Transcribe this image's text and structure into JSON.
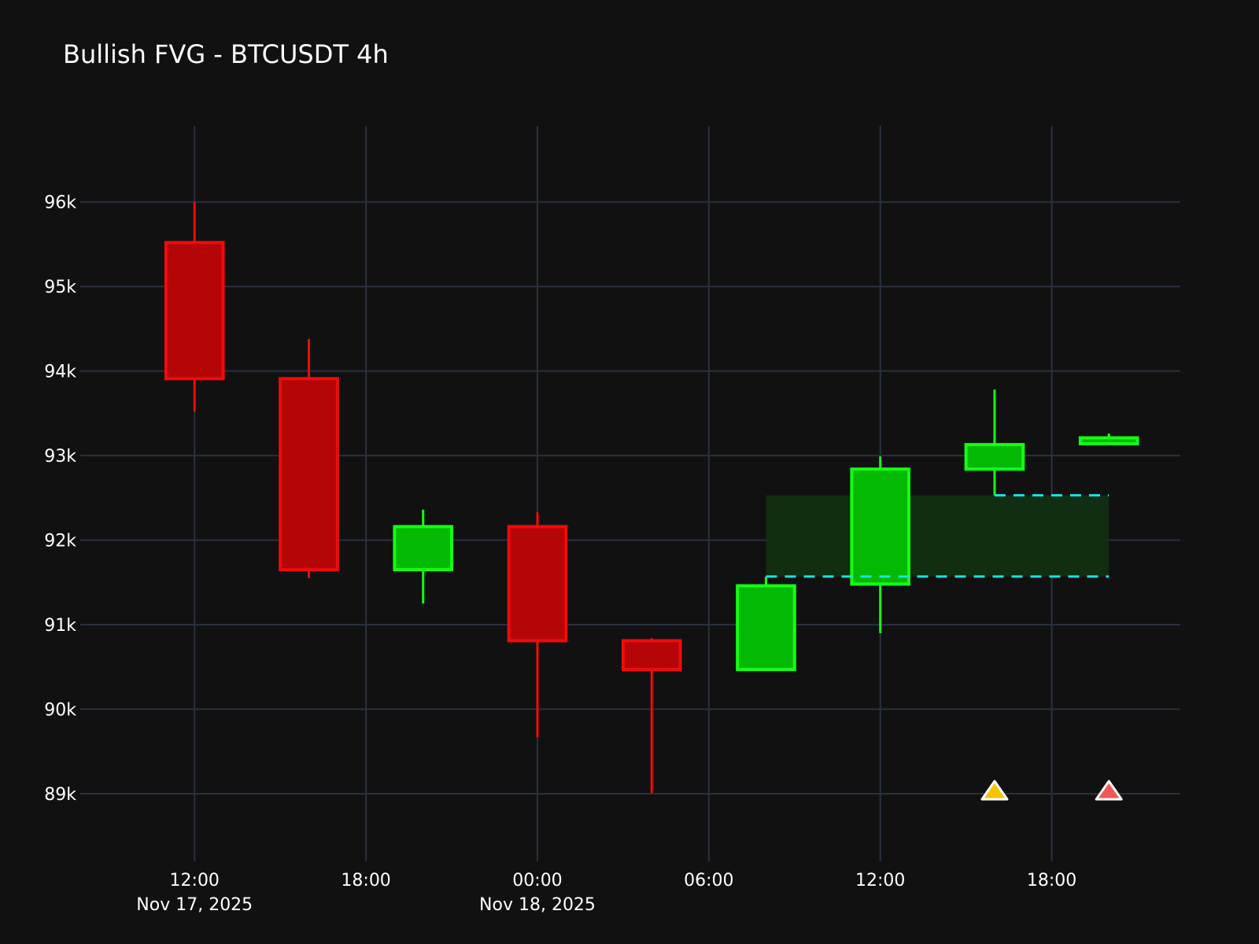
{
  "chart_data": {
    "type": "candlestick",
    "title": "Bullish FVG - BTCUSDT 4h",
    "xlabel": "",
    "ylabel": "",
    "ylim": [
      88200,
      96900
    ],
    "xlim": [
      "2025-11-17T08:00",
      "2025-11-18T22:30"
    ],
    "grid": true,
    "y_ticks": [
      {
        "value": 89000,
        "label": "89k"
      },
      {
        "value": 90000,
        "label": "90k"
      },
      {
        "value": 91000,
        "label": "91k"
      },
      {
        "value": 92000,
        "label": "92k"
      },
      {
        "value": 93000,
        "label": "93k"
      },
      {
        "value": 94000,
        "label": "94k"
      },
      {
        "value": 95000,
        "label": "95k"
      },
      {
        "value": 96000,
        "label": "96k"
      }
    ],
    "x_ticks": [
      {
        "time": "2025-11-17T12:00",
        "label": "12:00",
        "sublabel": "Nov 17, 2025"
      },
      {
        "time": "2025-11-17T18:00",
        "label": "18:00",
        "sublabel": ""
      },
      {
        "time": "2025-11-18T00:00",
        "label": "00:00",
        "sublabel": "Nov 18, 2025"
      },
      {
        "time": "2025-11-18T06:00",
        "label": "06:00",
        "sublabel": ""
      },
      {
        "time": "2025-11-18T12:00",
        "label": "12:00",
        "sublabel": ""
      },
      {
        "time": "2025-11-18T18:00",
        "label": "18:00",
        "sublabel": ""
      }
    ],
    "candles": [
      {
        "time": "2025-11-17T12:00",
        "open": 95520,
        "high": 96000,
        "low": 93520,
        "close": 93910
      },
      {
        "time": "2025-11-17T16:00",
        "open": 93910,
        "high": 94380,
        "low": 91550,
        "close": 91650
      },
      {
        "time": "2025-11-17T20:00",
        "open": 91650,
        "high": 92360,
        "low": 91250,
        "close": 92160
      },
      {
        "time": "2025-11-18T00:00",
        "open": 92160,
        "high": 92330,
        "low": 89670,
        "close": 90810
      },
      {
        "time": "2025-11-18T04:00",
        "open": 90810,
        "high": 90840,
        "low": 89010,
        "close": 90470
      },
      {
        "time": "2025-11-18T08:00",
        "open": 90470,
        "high": 91570,
        "low": 90470,
        "close": 91460
      },
      {
        "time": "2025-11-18T12:00",
        "open": 91480,
        "high": 92990,
        "low": 90900,
        "close": 92840
      },
      {
        "time": "2025-11-18T16:00",
        "open": 92840,
        "high": 93780,
        "low": 92530,
        "close": 93130
      },
      {
        "time": "2025-11-18T20:00",
        "open": 93140,
        "high": 93260,
        "low": 93140,
        "close": 93210
      }
    ],
    "fvg_zone": {
      "start": "2025-11-18T08:00",
      "end": "2025-11-18T20:00",
      "top": 92530,
      "bottom": 91570
    },
    "levels": [
      {
        "value": 91570,
        "start": "2025-11-18T08:00",
        "end": "2025-11-18T20:00"
      },
      {
        "value": 92530,
        "start": "2025-11-18T16:00",
        "end": "2025-11-18T20:00"
      }
    ],
    "markers": [
      {
        "time": "2025-11-18T16:00",
        "value": 89000,
        "shape": "triangle-up",
        "color": "#f5c400"
      },
      {
        "time": "2025-11-18T20:00",
        "value": 89000,
        "shape": "triangle-up",
        "color": "#f25555"
      }
    ],
    "colors": {
      "background": "#111111",
      "grid": "#2a3140",
      "bullish_fill": "#04b904",
      "bullish_line": "#14ff14",
      "bearish_fill": "#b40606",
      "bearish_line": "#f20a0a",
      "fvg_fill": "#112d12",
      "level_line": "#19e3e0",
      "marker_outline": "#ffffff",
      "text": "#ffffff"
    }
  }
}
